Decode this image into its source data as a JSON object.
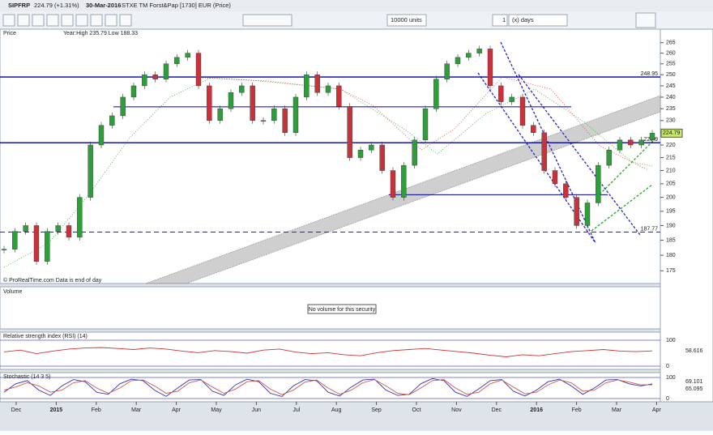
{
  "toolbar": {
    "symbol": "SIPFRP",
    "change": "224.79 (+1.31%)",
    "date": "30-Mar-2016",
    "description": "STXE TM Forst&Pap [1730] EUR (Price)",
    "units": "10000 units",
    "period_count": "1",
    "period_unit": "(x) days"
  },
  "price_panel": {
    "label": "Price",
    "info": "Year:High 235.79 Low 188.33",
    "copyright": "© ProRealTime.com  Data is end of day",
    "log_scale": true,
    "ylim": [
      172,
      270
    ],
    "yticks": [
      175,
      180,
      185,
      190,
      195,
      200,
      205,
      210,
      215,
      220,
      225,
      230,
      235,
      240,
      245,
      250,
      255,
      260,
      265
    ],
    "last": 224.79,
    "labeled_levels": [
      248.95,
      220.9,
      187.77
    ],
    "levels": [
      235.79,
      200.95
    ],
    "close": [
      182,
      188,
      190,
      178,
      188,
      190,
      186,
      200,
      220,
      228,
      232,
      240,
      245,
      250,
      248,
      255,
      258,
      260,
      245,
      230,
      235,
      242,
      245,
      230,
      230,
      235,
      225,
      240,
      250,
      242,
      245,
      236,
      215,
      218,
      220,
      210,
      200,
      212,
      222,
      235,
      248,
      255,
      258,
      260,
      262,
      245,
      238,
      240,
      228,
      225,
      210,
      205,
      200,
      190,
      198,
      212,
      218,
      222,
      220,
      222,
      224.79
    ]
  },
  "x_labels": [
    "Dec",
    "2015",
    "Feb",
    "Mar",
    "Apr",
    "May",
    "Jun",
    "Jul",
    "Aug",
    "Sep",
    "Oct",
    "Nov",
    "Dec",
    "2016",
    "Feb",
    "Mar",
    "Apr"
  ],
  "volume_panel": {
    "label": "Volume",
    "message": "No volume for this security"
  },
  "rsi_panel": {
    "label": "Relative strength index (RSI) (14)",
    "ylim": [
      0,
      100
    ],
    "yticks": [
      100,
      0
    ],
    "last": 58.616,
    "values": [
      55,
      62,
      48,
      58,
      66,
      70,
      72,
      68,
      64,
      70,
      66,
      58,
      52,
      60,
      56,
      50,
      62,
      66,
      54,
      48,
      52,
      44,
      40,
      52,
      60,
      64,
      68,
      62,
      56,
      50,
      42,
      36,
      44,
      40,
      48,
      56,
      60,
      64,
      58,
      56,
      58.616
    ]
  },
  "stoch_panel": {
    "label": "Stochastic (14 3 5)",
    "ylim": [
      0,
      100
    ],
    "yticks": [
      100,
      0
    ],
    "k_last": 69.101,
    "d_last": 65.095,
    "k": [
      30,
      70,
      85,
      40,
      15,
      60,
      90,
      80,
      30,
      20,
      70,
      92,
      85,
      40,
      10,
      50,
      88,
      90,
      35,
      15,
      65,
      92,
      80,
      25,
      10,
      60,
      90,
      85,
      30,
      12,
      55,
      88,
      92,
      40,
      15,
      20,
      70,
      95,
      85,
      30,
      10,
      45,
      85,
      90,
      35,
      12,
      40,
      80,
      92,
      60,
      20,
      50,
      88,
      90,
      70,
      60,
      69.101
    ],
    "d": [
      40,
      55,
      75,
      60,
      30,
      40,
      75,
      85,
      50,
      25,
      50,
      85,
      88,
      60,
      25,
      35,
      75,
      88,
      55,
      25,
      45,
      80,
      85,
      45,
      18,
      40,
      78,
      88,
      50,
      20,
      40,
      75,
      90,
      60,
      25,
      18,
      50,
      85,
      90,
      50,
      20,
      30,
      70,
      88,
      55,
      22,
      30,
      65,
      88,
      75,
      35,
      40,
      75,
      88,
      78,
      65,
      65.095
    ]
  }
}
